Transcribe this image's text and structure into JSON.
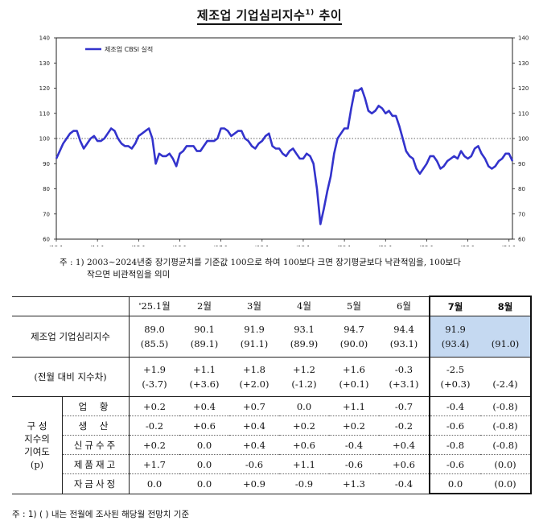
{
  "title": "제조업 기업심리지수",
  "title_sup": "1)",
  "chart_data": {
    "type": "line",
    "legend": "제조업 CBSI 실적",
    "legend_placement": "top-left",
    "ylim": [
      60,
      140
    ],
    "yticks": [
      "60",
      "70",
      "80",
      "90",
      "100",
      "110",
      "120",
      "130",
      "140"
    ],
    "xticks": [
      "'13.1",
      "'14.1",
      "'15.1",
      "'16.1",
      "'17.1",
      "'18.1",
      "'19.1",
      "'20.1",
      "'21.1",
      "'22.1",
      "'23.1",
      "'24.1",
      "25.1"
    ],
    "reference_line": 100,
    "series": [
      {
        "name": "제조업 CBSI 실적",
        "color": "#3333cc",
        "values": [
          92,
          95,
          98,
          100,
          102,
          103,
          103,
          99,
          96,
          98,
          100,
          101,
          99,
          99,
          100,
          102,
          104,
          103,
          100,
          98,
          97,
          97,
          96,
          98,
          101,
          102,
          103,
          104,
          100,
          90,
          94,
          93,
          93,
          94,
          92,
          89,
          94,
          95,
          97,
          97,
          97,
          95,
          95,
          97,
          99,
          99,
          99,
          100,
          104,
          104,
          103,
          101,
          102,
          103,
          103,
          100,
          99,
          97,
          96,
          98,
          99,
          101,
          102,
          97,
          96,
          96,
          94,
          93,
          95,
          96,
          94,
          92,
          92,
          94,
          93,
          90,
          80,
          66,
          72,
          79,
          85,
          94,
          100,
          102,
          104,
          104,
          112,
          119,
          119,
          120,
          116,
          111,
          110,
          111,
          113,
          112,
          110,
          111,
          109,
          109,
          105,
          100,
          95,
          93,
          92,
          88,
          86,
          88,
          90,
          93,
          93,
          91,
          88,
          89,
          91,
          92,
          93,
          92,
          95,
          93,
          92,
          93,
          96,
          97,
          94,
          92,
          89,
          88,
          89,
          91,
          92,
          94,
          94,
          91
        ]
      }
    ]
  },
  "notes": {
    "note1": "주 : 1) 2003~2024년중 장기평균치를 기준값 100으로 하여 100보다 크면 장기평균보다 낙관적임을, 100보다",
    "note2": "작으면 비관적임을 의미",
    "footnote": "주 : 1) (    ) 내는 전월에 조사된 해당월 전망치 기준"
  },
  "table": {
    "months": [
      "'25.1월",
      "2월",
      "3월",
      "4월",
      "5월",
      "6월",
      "7월",
      "8월"
    ],
    "cbsi_label": "제조업 기업심리지수",
    "cbsi": [
      "89.0",
      "90.1",
      "91.9",
      "93.1",
      "94.7",
      "94.4",
      "91.9",
      ""
    ],
    "cbsi_prev": [
      "(85.5)",
      "(89.1)",
      "(91.1)",
      "(89.9)",
      "(90.0)",
      "(93.1)",
      "(93.4)",
      "(91.0)"
    ],
    "mom_label": "(전월 대비 지수차)",
    "mom": [
      "+1.9",
      "+1.1",
      "+1.8",
      "+1.2",
      "+1.6",
      "-0.3",
      "-2.5",
      ""
    ],
    "mom_prev": [
      "(-3.7)",
      "(+3.6)",
      "(+2.0)",
      "(-1.2)",
      "(+0.1)",
      "(+3.1)",
      "(+0.3)",
      "(-2.4)"
    ],
    "contrib_label_lines": [
      "구 성",
      "지수의",
      "기여도",
      "(p)"
    ],
    "components": [
      {
        "label": "업 황",
        "values": [
          "+0.2",
          "+0.4",
          "+0.7",
          "0.0",
          "+1.1",
          "-0.7",
          "-0.4",
          "(-0.8)"
        ]
      },
      {
        "label": "생 산",
        "values": [
          "-0.2",
          "+0.6",
          "+0.4",
          "+0.2",
          "+0.2",
          "-0.2",
          "-0.6",
          "(-0.8)"
        ]
      },
      {
        "label": "신규수주",
        "values": [
          "+0.2",
          "0.0",
          "+0.4",
          "+0.6",
          "-0.4",
          "+0.4",
          "-0.8",
          "(-0.8)"
        ]
      },
      {
        "label": "제품재고",
        "values": [
          "+1.7",
          "0.0",
          "-0.6",
          "+1.1",
          "-0.6",
          "+0.6",
          "-0.6",
          "(0.0)"
        ]
      },
      {
        "label": "자금사정",
        "values": [
          "0.0",
          "0.0",
          "+0.9",
          "-0.9",
          "+1.3",
          "-0.4",
          "0.0",
          "(0.0)"
        ]
      }
    ]
  }
}
